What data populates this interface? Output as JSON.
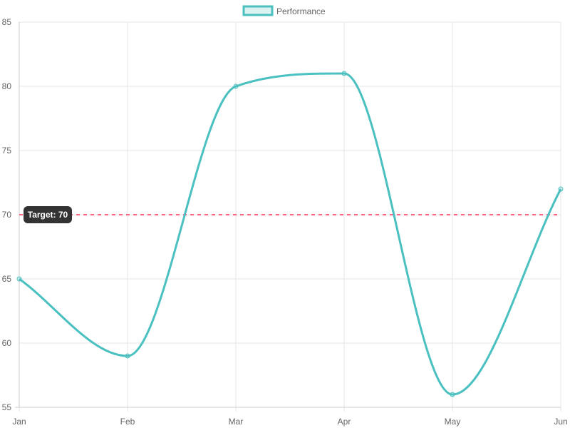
{
  "chart_data": {
    "type": "line",
    "categories": [
      "Jan",
      "Feb",
      "Mar",
      "Apr",
      "May",
      "Jun"
    ],
    "series": [
      {
        "name": "Performance",
        "values": [
          65,
          59,
          80,
          81,
          56,
          72
        ],
        "color": "#4bc0c0"
      }
    ],
    "ylim": [
      55,
      85
    ],
    "yticks": [
      55,
      60,
      65,
      70,
      75,
      80,
      85
    ],
    "grid": true,
    "legend": "top-center",
    "target": {
      "value": 70,
      "label": "Target: 70",
      "color": "#ff6384"
    },
    "target_label_bg": "#333333"
  }
}
